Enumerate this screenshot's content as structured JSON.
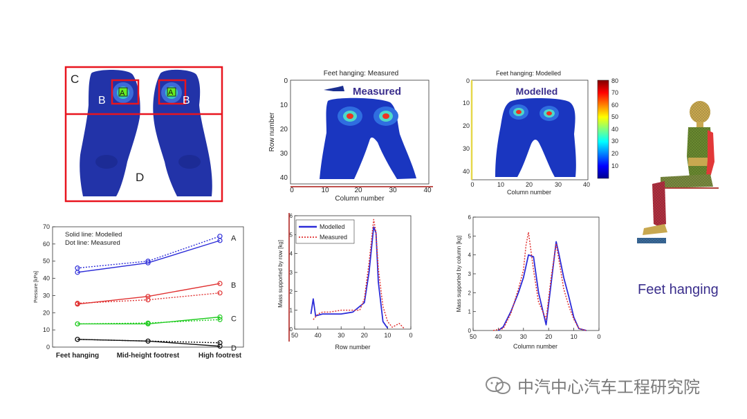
{
  "colors": {
    "foot_blue": "#2233a8",
    "frame_red": "#e8141e",
    "modelled_blue": "#2b2bd8",
    "measured_red": "#e03030",
    "green": "#22cc22",
    "black": "#111111",
    "label_purple": "#3a2e8c"
  },
  "regions": {
    "labels": [
      "C",
      "B",
      "A",
      "A",
      "B",
      "D"
    ]
  },
  "contour_measured": {
    "title": "Feet hanging: Measured",
    "overlay": "Measured",
    "xlabel": "Column number",
    "ylabel": "Row number",
    "xticks": [
      "0",
      "10",
      "20",
      "30",
      "40"
    ],
    "yticks": [
      "0",
      "10",
      "20",
      "30",
      "40"
    ]
  },
  "contour_modelled": {
    "title": "Feet hanging: Modelled",
    "overlay": "Modelled",
    "xlabel": "Column number",
    "yticks": [
      "0",
      "10",
      "20",
      "30",
      "40"
    ],
    "xticks": [
      "0",
      "10",
      "20",
      "30",
      "40"
    ],
    "colorbar_ticks": [
      "80",
      "70",
      "60",
      "50",
      "40",
      "30",
      "20",
      "10"
    ]
  },
  "chart_data": [
    {
      "type": "line",
      "ylabel": "Pressure [kPa]",
      "categories": [
        "Feet hanging",
        "Mid-height footrest",
        "High footrest"
      ],
      "ylim": [
        0,
        70
      ],
      "yticks": [
        "0",
        "10",
        "20",
        "30",
        "40",
        "50",
        "60",
        "70"
      ],
      "legend_text": [
        "Solid line: Modelled",
        "Dot line: Measured"
      ],
      "series": [
        {
          "name": "A",
          "style": "solid",
          "color": "#2b2bd8",
          "values": [
            43.5,
            49.0,
            62.0
          ]
        },
        {
          "name": "A",
          "style": "dotted",
          "color": "#2b2bd8",
          "values": [
            46.0,
            50.0,
            64.5
          ]
        },
        {
          "name": "B",
          "style": "solid",
          "color": "#e03030",
          "values": [
            25.0,
            29.5,
            37.0
          ]
        },
        {
          "name": "B",
          "style": "dotted",
          "color": "#e03030",
          "values": [
            25.5,
            27.5,
            31.5
          ]
        },
        {
          "name": "C",
          "style": "solid",
          "color": "#22cc22",
          "values": [
            13.5,
            13.5,
            17.5
          ]
        },
        {
          "name": "C",
          "style": "dotted",
          "color": "#22cc22",
          "values": [
            13.5,
            14.0,
            16.0
          ]
        },
        {
          "name": "D",
          "style": "solid",
          "color": "#111111",
          "values": [
            4.5,
            3.5,
            0.5
          ]
        },
        {
          "name": "D",
          "style": "dotted",
          "color": "#111111",
          "values": [
            4.5,
            3.5,
            2.5
          ]
        }
      ]
    },
    {
      "type": "line",
      "xlabel": "Row number",
      "ylabel": "Mass supported by row [kg]",
      "xlim": [
        50,
        0
      ],
      "xticks": [
        "50",
        "40",
        "30",
        "20",
        "10",
        "0"
      ],
      "ylim": [
        0,
        6
      ],
      "series": [
        {
          "name": "Modelled",
          "style": "solid",
          "color": "#2b2bd8",
          "x": [
            43,
            42,
            41,
            38,
            35,
            30,
            25,
            23,
            20,
            18,
            16,
            15,
            14,
            12,
            10
          ],
          "y": [
            0.8,
            1.6,
            0.7,
            0.8,
            0.8,
            0.8,
            0.9,
            1.1,
            1.4,
            3.0,
            5.4,
            5.1,
            2.5,
            0.4,
            0.05
          ]
        },
        {
          "name": "Measured",
          "style": "dotted",
          "color": "#e03030",
          "x": [
            42,
            40,
            38,
            35,
            30,
            25,
            22,
            20,
            18,
            16,
            15,
            14,
            12,
            10,
            8,
            5,
            3
          ],
          "y": [
            0.5,
            0.8,
            0.9,
            0.9,
            1.0,
            1.0,
            1.0,
            1.6,
            3.5,
            5.8,
            5.1,
            3.2,
            1.2,
            0.4,
            0.1,
            0.3,
            0.05
          ]
        }
      ]
    },
    {
      "type": "line",
      "xlabel": "Column number",
      "ylabel": "Mass supported by column [kg]",
      "xlim": [
        50,
        0
      ],
      "xticks": [
        "50",
        "40",
        "30",
        "20",
        "10",
        "0"
      ],
      "ylim": [
        0,
        6
      ],
      "series": [
        {
          "name": "Modelled",
          "style": "solid",
          "color": "#2b2bd8",
          "x": [
            40,
            38,
            35,
            32,
            30,
            28,
            26,
            24,
            21,
            19,
            17,
            16,
            14,
            12,
            10,
            8,
            5
          ],
          "y": [
            0,
            0.2,
            1.0,
            2.0,
            2.8,
            4.0,
            3.9,
            2.0,
            0.3,
            2.5,
            4.7,
            4.1,
            2.8,
            1.8,
            0.7,
            0.1,
            0
          ]
        },
        {
          "name": "Measured",
          "style": "dotted",
          "color": "#e03030",
          "x": [
            42,
            38,
            35,
            32,
            30,
            29,
            28,
            26,
            24,
            21,
            19,
            17,
            16,
            14,
            12,
            10,
            8,
            5
          ],
          "y": [
            0,
            0.1,
            0.9,
            2.2,
            3.2,
            4.5,
            5.2,
            3.2,
            1.5,
            0.6,
            2.8,
            4.6,
            3.8,
            2.2,
            1.3,
            0.6,
            0.1,
            0
          ]
        }
      ]
    }
  ],
  "side_label": "Feet hanging",
  "watermark": "中汽中心汽车工程研究院"
}
